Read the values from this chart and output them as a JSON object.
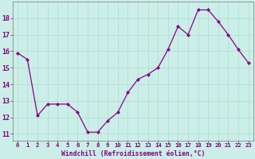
{
  "x": [
    0,
    1,
    2,
    3,
    4,
    5,
    6,
    7,
    8,
    9,
    10,
    11,
    12,
    13,
    14,
    15,
    16,
    17,
    18,
    19,
    20,
    21,
    22,
    23
  ],
  "y": [
    15.9,
    15.5,
    12.1,
    12.8,
    12.8,
    12.8,
    12.3,
    11.1,
    11.1,
    11.8,
    12.3,
    13.5,
    14.3,
    14.6,
    15.0,
    16.1,
    17.5,
    17.0,
    18.5,
    18.5,
    17.8,
    17.0,
    16.1,
    15.3
  ],
  "x_labels": [
    "0",
    "1",
    "2",
    "3",
    "4",
    "5",
    "6",
    "7",
    "8",
    "9",
    "10",
    "11",
    "12",
    "13",
    "14",
    "15",
    "16",
    "17",
    "18",
    "19",
    "20",
    "21",
    "22",
    "23"
  ],
  "y_ticks": [
    11,
    12,
    13,
    14,
    15,
    16,
    17,
    18
  ],
  "ylim": [
    10.6,
    19.0
  ],
  "xlim": [
    -0.5,
    23.5
  ],
  "xlabel": "Windchill (Refroidissement éolien,°C)",
  "line_color": "#8B008B",
  "marker_color": "#8B008B",
  "bg_color": "#cceee8",
  "grid_color": "#aaddcc",
  "label_color": "#800080"
}
